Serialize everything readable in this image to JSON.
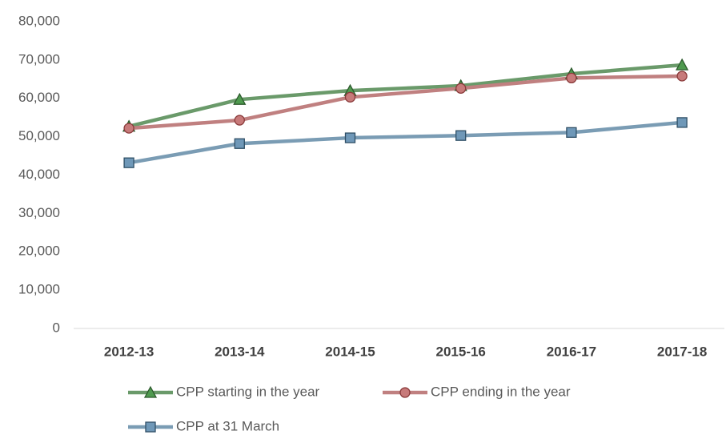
{
  "chart_data": {
    "type": "line",
    "categories": [
      "2012-13",
      "2013-14",
      "2014-15",
      "2015-16",
      "2016-17",
      "2017-18"
    ],
    "series": [
      {
        "name": "CPP starting in the year",
        "color": "#6a9a6a",
        "marker": "triangle",
        "values": [
          52700,
          59700,
          62000,
          63300,
          66400,
          68700
        ]
      },
      {
        "name": "CPP ending in the year",
        "color": "#c08080",
        "marker": "circle",
        "values": [
          52200,
          54300,
          60300,
          62600,
          65300,
          65800
        ]
      },
      {
        "name": "CPP at 31 March",
        "color": "#7a9cb4",
        "marker": "square",
        "values": [
          43200,
          48200,
          49700,
          50300,
          51100,
          53700
        ]
      }
    ],
    "ylim": [
      0,
      80000
    ],
    "yticks": [
      0,
      {
        "value": 10000,
        "label": "10,000"
      },
      {
        "value": 20000,
        "label": "20,000"
      },
      {
        "value": 30000,
        "label": "30,000"
      },
      {
        "value": 40000,
        "label": "40,000"
      },
      {
        "value": 50000,
        "label": "50,000"
      },
      {
        "value": 60000,
        "label": "60,000"
      },
      {
        "value": 70000,
        "label": "70,000"
      },
      {
        "value": 80000,
        "label": "80,000"
      }
    ],
    "grid": false,
    "legend": "bottom"
  }
}
